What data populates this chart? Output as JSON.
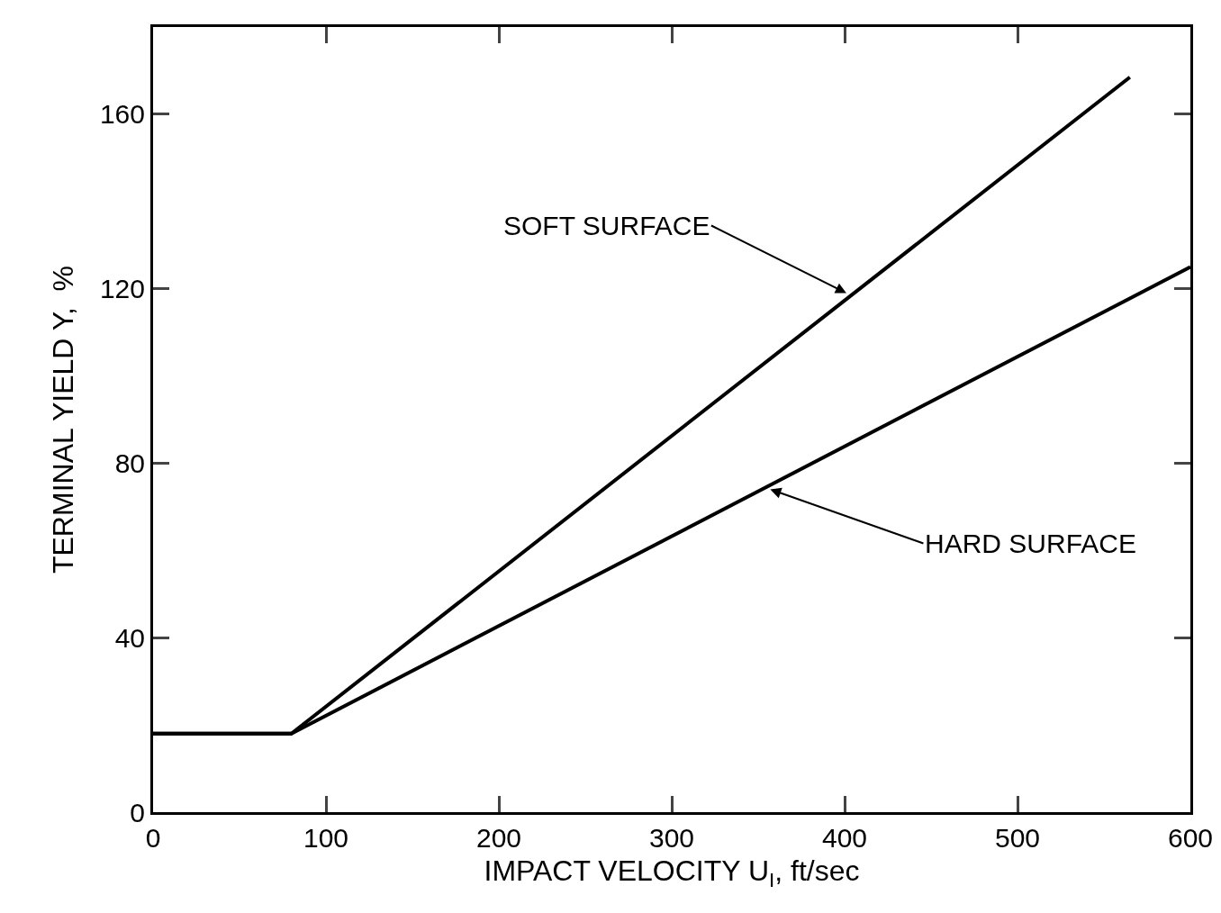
{
  "chart_data": {
    "type": "line",
    "xlabel": "IMPACT VELOCITY U$_{I}$, ft/sec",
    "ylabel": "TERMINAL YIELD Y,  %",
    "series": [
      {
        "color": "#000000",
        "x": [
          0,
          80,
          565
        ],
        "values": [
          18,
          18,
          168.5
        ]
      },
      {
        "color": "#000000",
        "x": [
          0,
          80,
          600
        ],
        "values": [
          18,
          18,
          125
        ]
      }
    ],
    "xlim": [
      0,
      600
    ],
    "xticks": [
      0,
      100,
      200,
      300,
      400,
      500,
      600
    ],
    "ylim": [
      0,
      180
    ],
    "yticks": [
      0,
      40,
      80,
      120,
      160
    ],
    "grid": false,
    "annotations": [
      {
        "text": "SOFT SURFACE",
        "x": 401,
        "y": 119
      },
      {
        "text": "HARD SURFACE",
        "x": 357,
        "y": 74
      }
    ]
  }
}
